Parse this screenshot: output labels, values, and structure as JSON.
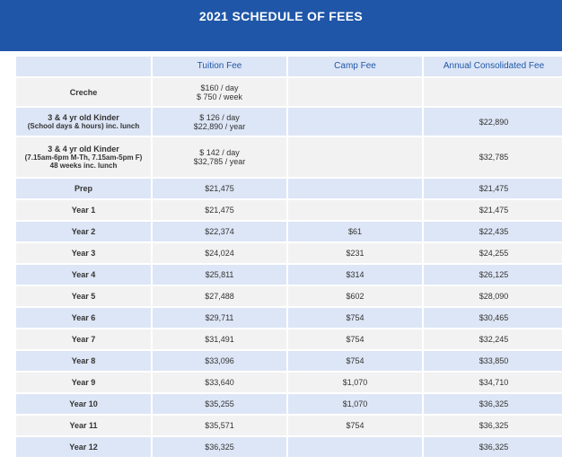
{
  "title": "2021 SCHEDULE OF FEES",
  "headers": {
    "blank": "",
    "tuition": "Tuition Fee",
    "camp": "Camp Fee",
    "annual": "Annual Consolidated Fee"
  },
  "rows": [
    {
      "label": "Creche",
      "tuition_1": "$160 / day",
      "tuition_2": "$ 750 / week",
      "camp": "",
      "annual": ""
    },
    {
      "label": "3 & 4 yr old Kinder",
      "label_sub": "(School days & hours) inc. lunch",
      "tuition_1": "$ 126 / day",
      "tuition_2": "$22,890 / year",
      "camp": "",
      "annual": "$22,890"
    },
    {
      "label": "3 & 4 yr old Kinder",
      "label_sub": "(7.15am-6pm M-Th, 7.15am-5pm F)",
      "label_sub2": "48 weeks inc. lunch",
      "tuition_1": "$ 142 / day",
      "tuition_2": "$32,785 / year",
      "camp": "",
      "annual": "$32,785"
    },
    {
      "label": "Prep",
      "tuition_1": "$21,475",
      "camp": "",
      "annual": "$21,475"
    },
    {
      "label": "Year 1",
      "tuition_1": "$21,475",
      "camp": "",
      "annual": "$21,475"
    },
    {
      "label": "Year 2",
      "tuition_1": "$22,374",
      "camp": "$61",
      "annual": "$22,435"
    },
    {
      "label": "Year 3",
      "tuition_1": "$24,024",
      "camp": "$231",
      "annual": "$24,255"
    },
    {
      "label": "Year 4",
      "tuition_1": "$25,811",
      "camp": "$314",
      "annual": "$26,125"
    },
    {
      "label": "Year 5",
      "tuition_1": "$27,488",
      "camp": "$602",
      "annual": "$28,090"
    },
    {
      "label": "Year 6",
      "tuition_1": "$29,711",
      "camp": "$754",
      "annual": "$30,465"
    },
    {
      "label": "Year 7",
      "tuition_1": "$31,491",
      "camp": "$754",
      "annual": "$32,245"
    },
    {
      "label": "Year 8",
      "tuition_1": "$33,096",
      "camp": "$754",
      "annual": "$33,850"
    },
    {
      "label": "Year 9",
      "tuition_1": "$33,640",
      "camp": "$1,070",
      "annual": "$34,710"
    },
    {
      "label": "Year 10",
      "tuition_1": "$35,255",
      "camp": "$1,070",
      "annual": "$36,325"
    },
    {
      "label": "Year 11",
      "tuition_1": "$35,571",
      "camp": "$754",
      "annual": "$36,325"
    },
    {
      "label": "Year 12",
      "tuition_1": "$36,325",
      "camp": "",
      "annual": "$36,325"
    }
  ]
}
